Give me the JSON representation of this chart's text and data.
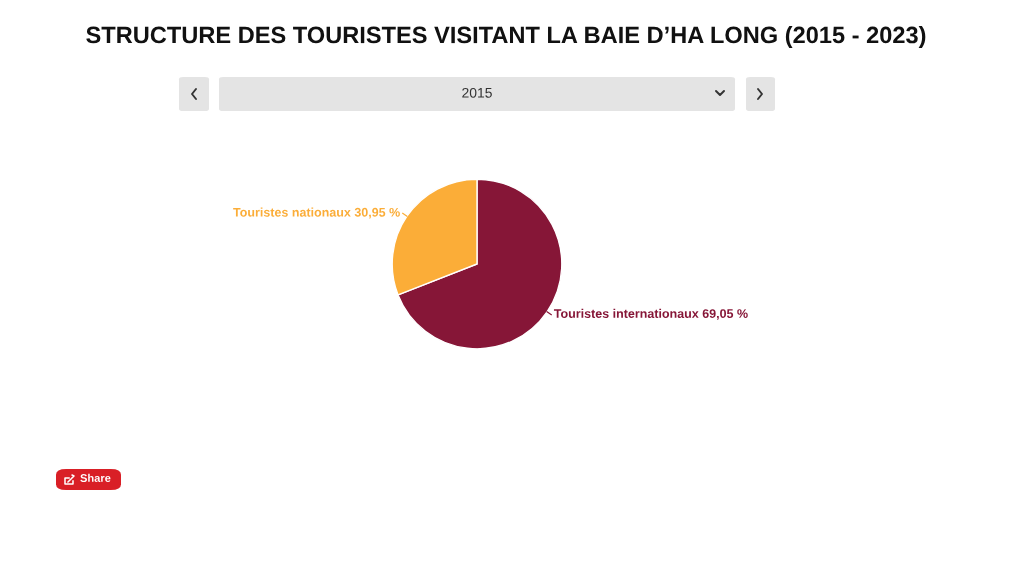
{
  "chart_data": {
    "type": "pie",
    "title": "STRUCTURE DES TOURISTES VISITANT LA BAIE D’HA LONG (2015 - 2023)",
    "subtitle": "2015",
    "categories": [
      "Touristes internationaux",
      "Touristes nationaux"
    ],
    "values": [
      69.05,
      30.95
    ],
    "colors": [
      "#861637",
      "#fbad38"
    ],
    "value_labels": [
      "69,05 %",
      "30,95 %"
    ],
    "annotations": [
      "Share"
    ]
  }
}
